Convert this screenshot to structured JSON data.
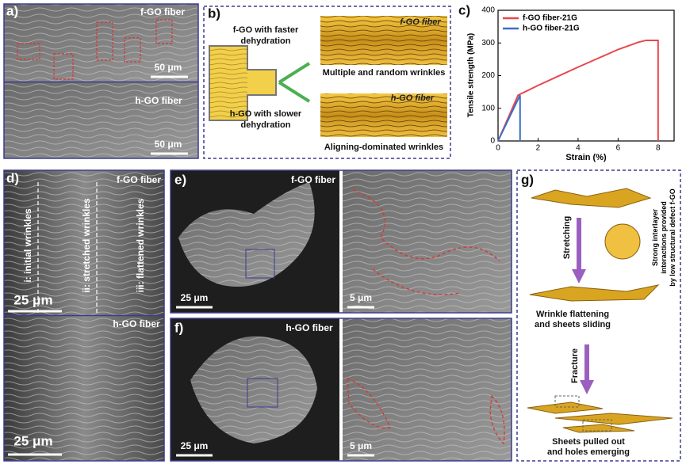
{
  "chart_data": {
    "type": "line",
    "panel_label": "c)",
    "xlabel": "Strain (%)",
    "ylabel": "Tensile strength (MPa)",
    "series": [
      {
        "name": "f-GO fiber-21G",
        "color": "#e8474c",
        "x": [
          0,
          1,
          2,
          3,
          4,
          5,
          6,
          7,
          7.4,
          8,
          8
        ],
        "values": [
          0,
          140,
          170,
          198,
          226,
          253,
          280,
          302,
          308,
          308,
          0
        ]
      },
      {
        "name": "h-GO fiber-21G",
        "color": "#3a6fc4",
        "x": [
          0,
          1.1,
          1.1
        ],
        "values": [
          0,
          140,
          0
        ]
      }
    ],
    "xlim": [
      0,
      8.8
    ],
    "xticks": [
      0,
      2,
      4,
      6,
      8
    ],
    "ylim": [
      0,
      400
    ],
    "yticks": [
      0,
      100,
      200,
      300,
      400
    ],
    "legend": "upper left"
  },
  "panels": {
    "a": {
      "label": "a)",
      "top_title": "f-GO fiber",
      "top_scale": "50 μm",
      "bottom_title": "h-GO fiber",
      "bottom_scale": "50 μm"
    },
    "b": {
      "label": "b)",
      "fast": [
        "f-GO with faster",
        "dehydration"
      ],
      "slow": [
        "h-GO with slower",
        "dehydration"
      ],
      "top_title": "f-GO fiber",
      "top_caption": "Multiple and random wrinkles",
      "bottom_title": "h-GO fiber",
      "bottom_caption": "Aligning-dominated wrinkles"
    },
    "d": {
      "label": "d)",
      "top_title": "f-GO fiber",
      "zones": [
        "i: initial wrinkles",
        "ii: stretched wrinkles",
        "iii: flattened wrinkles"
      ],
      "top_scale": "25 μm",
      "bottom_title": "h-GO fiber",
      "bottom_scale": "25 μm"
    },
    "e": {
      "label": "e)",
      "title": "f-GO fiber",
      "left_scale": "25 μm",
      "right_scale": "5 μm"
    },
    "f": {
      "label": "f)",
      "title": "h-GO fiber",
      "left_scale": "25 μm",
      "right_scale": "5 μm"
    },
    "g": {
      "label": "g)",
      "stretching": "Stretching",
      "interaction": [
        "Strong interlayer",
        "interactions provided",
        "by low structural defect f-GO"
      ],
      "step1": [
        "Wrinkle flattening",
        "and sheets sliding"
      ],
      "fracture": "Fracture",
      "step2": [
        "Sheets pulled out",
        "and holes emerging"
      ]
    }
  }
}
